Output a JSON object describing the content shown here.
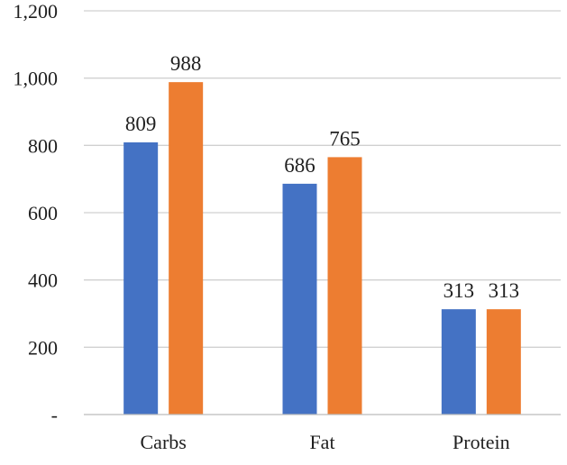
{
  "chart_data": {
    "type": "bar",
    "categories": [
      "Carbs",
      "Fat",
      "Protein"
    ],
    "series": [
      {
        "values": [
          809,
          686,
          313
        ],
        "color": "#4472c4"
      },
      {
        "values": [
          988,
          765,
          313
        ],
        "color": "#ed7d31"
      }
    ],
    "ylim": [
      0,
      1200
    ],
    "yticks": [
      0,
      200,
      400,
      600,
      800,
      1000,
      1200
    ],
    "ytick_labels": [
      "-",
      "200",
      "400",
      "600",
      "800",
      "1,000",
      "1,200"
    ],
    "data_labels": [
      [
        "809",
        "686",
        "313"
      ],
      [
        "988",
        "765",
        "313"
      ]
    ],
    "grid": true,
    "legend": "none"
  }
}
